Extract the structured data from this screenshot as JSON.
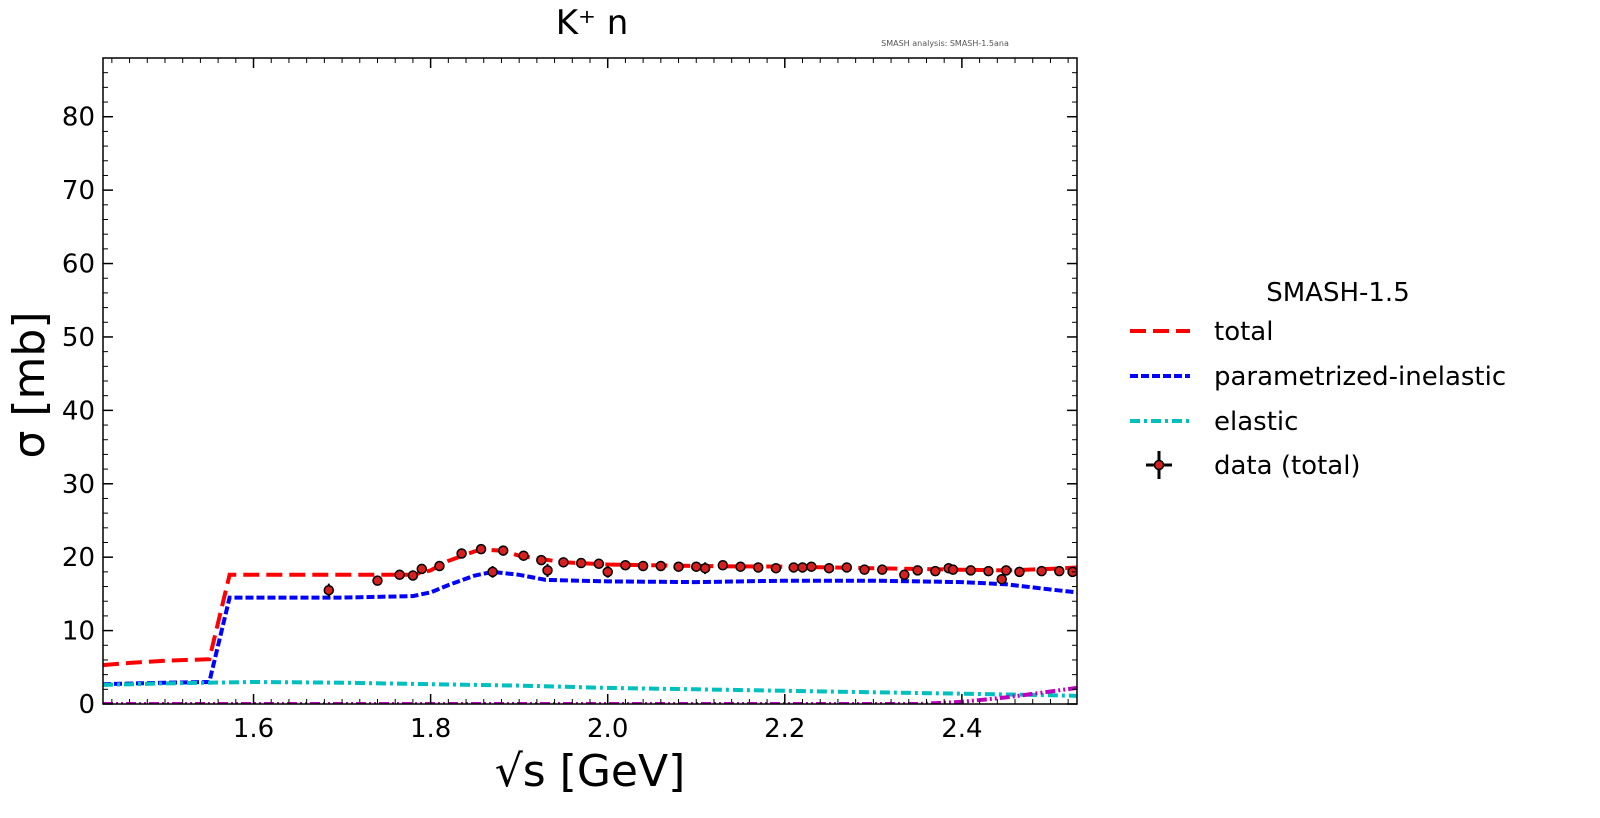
{
  "chart_data": {
    "type": "line",
    "title": "K⁺ n",
    "subtitle": "SMASH analysis: SMASH-1.5ana",
    "xlabel": "√s [GeV]",
    "ylabel": "σ [mb]",
    "xlim": [
      1.43,
      2.53
    ],
    "ylim": [
      0,
      88
    ],
    "xticks": [
      1.6,
      1.8,
      2.0,
      2.2,
      2.4
    ],
    "yticks": [
      0,
      10,
      20,
      30,
      40,
      50,
      60,
      70,
      80
    ],
    "xtick_labels": [
      "1.6",
      "1.8",
      "2.0",
      "2.2",
      "2.4"
    ],
    "ytick_labels": [
      "0",
      "10",
      "20",
      "30",
      "40",
      "50",
      "60",
      "70",
      "80"
    ],
    "legend": {
      "title": "SMASH-1.5",
      "placement": "outside-right"
    },
    "series": [
      {
        "name": "total",
        "style": "dashed",
        "color": "#ff0000",
        "x": [
          1.43,
          1.46,
          1.5,
          1.55,
          1.573,
          1.6,
          1.7,
          1.78,
          1.8,
          1.82,
          1.85,
          1.86,
          1.88,
          1.9,
          1.95,
          2.0,
          2.1,
          2.2,
          2.3,
          2.4,
          2.45,
          2.5,
          2.53
        ],
        "y": [
          5.3,
          5.6,
          5.9,
          6.1,
          17.6,
          17.6,
          17.6,
          17.6,
          18.2,
          19.5,
          20.8,
          21.0,
          20.9,
          20.2,
          19.3,
          19.0,
          18.8,
          18.7,
          18.5,
          18.3,
          18.2,
          18.4,
          18.6
        ]
      },
      {
        "name": "parametrized-inelastic",
        "style": "dotted",
        "color": "#0000ff",
        "x": [
          1.43,
          1.5,
          1.55,
          1.573,
          1.6,
          1.7,
          1.78,
          1.8,
          1.82,
          1.85,
          1.87,
          1.9,
          1.93,
          2.0,
          2.1,
          2.2,
          2.3,
          2.4,
          2.45,
          2.5,
          2.53
        ],
        "y": [
          2.7,
          2.9,
          3.0,
          14.5,
          14.5,
          14.5,
          14.7,
          15.2,
          16.2,
          17.5,
          18.0,
          17.6,
          16.9,
          16.7,
          16.6,
          16.8,
          16.8,
          16.6,
          16.3,
          15.6,
          15.2
        ]
      },
      {
        "name": "elastic",
        "style": "dashdot",
        "color": "#00bfbf",
        "x": [
          1.43,
          1.5,
          1.6,
          1.7,
          1.8,
          1.9,
          2.0,
          2.1,
          2.2,
          2.3,
          2.4,
          2.5,
          2.53
        ],
        "y": [
          2.6,
          2.8,
          3.0,
          2.9,
          2.7,
          2.5,
          2.2,
          2.0,
          1.8,
          1.6,
          1.4,
          1.2,
          1.1
        ]
      },
      {
        "name": "",
        "style": "dashdotdot",
        "color": "#bf00bf",
        "x": [
          1.43,
          2.0,
          2.35,
          2.4,
          2.45,
          2.5,
          2.53
        ],
        "y": [
          0,
          0,
          0,
          0.3,
          0.9,
          1.7,
          2.2
        ]
      }
    ],
    "data_points": {
      "name": "data (total)",
      "color": "#d62020",
      "x": [
        1.685,
        1.74,
        1.765,
        1.78,
        1.79,
        1.81,
        1.835,
        1.857,
        1.87,
        1.882,
        1.905,
        1.925,
        1.932,
        1.95,
        1.97,
        1.99,
        2.0,
        2.02,
        2.04,
        2.06,
        2.08,
        2.1,
        2.11,
        2.13,
        2.15,
        2.17,
        2.19,
        2.21,
        2.22,
        2.23,
        2.25,
        2.27,
        2.29,
        2.31,
        2.335,
        2.35,
        2.37,
        2.385,
        2.39,
        2.41,
        2.43,
        2.445,
        2.45,
        2.465,
        2.49,
        2.51,
        2.525
      ],
      "y": [
        15.5,
        16.8,
        17.6,
        17.5,
        18.4,
        18.8,
        20.5,
        21.1,
        18.0,
        20.9,
        20.2,
        19.6,
        18.2,
        19.3,
        19.2,
        19.1,
        18.0,
        18.9,
        18.8,
        18.8,
        18.7,
        18.7,
        18.5,
        18.9,
        18.7,
        18.6,
        18.5,
        18.6,
        18.6,
        18.7,
        18.5,
        18.6,
        18.3,
        18.3,
        17.6,
        18.2,
        18.1,
        18.5,
        18.3,
        18.2,
        18.1,
        17.0,
        18.2,
        18.0,
        18.1,
        18.1,
        18.0
      ],
      "yerr": [
        0.9,
        0.5,
        0.4,
        0.6,
        0.5,
        0.4,
        0.4,
        0.4,
        0.8,
        0.4,
        0.4,
        0.4,
        0.9,
        0.4,
        0.4,
        0.4,
        0.8,
        0.4,
        0.4,
        0.4,
        0.4,
        0.4,
        0.8,
        0.4,
        0.4,
        0.4,
        0.4,
        0.4,
        0.4,
        0.4,
        0.4,
        0.4,
        0.4,
        0.4,
        0.6,
        0.4,
        0.4,
        0.6,
        0.4,
        0.4,
        0.4,
        0.7,
        0.5,
        0.4,
        0.4,
        0.4,
        0.4
      ]
    }
  }
}
